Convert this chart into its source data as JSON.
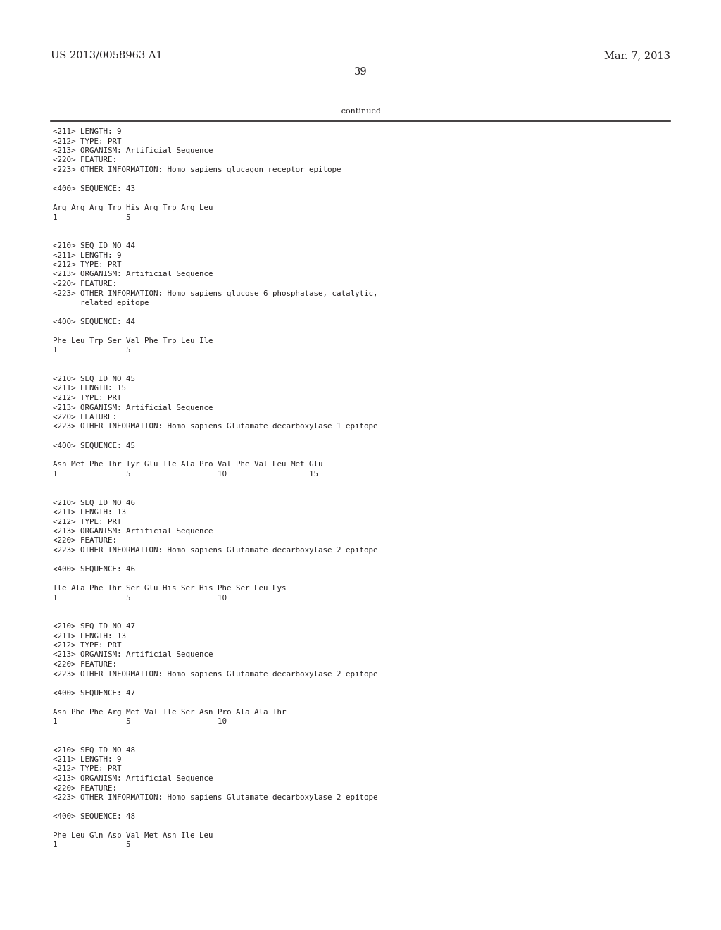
{
  "header_left": "US 2013/0058963 A1",
  "header_right": "Mar. 7, 2013",
  "page_number": "39",
  "continued_label": "-continued",
  "background_color": "#ffffff",
  "text_color": "#231f20",
  "font_size_header": 10.5,
  "font_size_body": 8.0,
  "content_lines": [
    "<211> LENGTH: 9",
    "<212> TYPE: PRT",
    "<213> ORGANISM: Artificial Sequence",
    "<220> FEATURE:",
    "<223> OTHER INFORMATION: Homo sapiens glucagon receptor epitope",
    "",
    "<400> SEQUENCE: 43",
    "",
    "Arg Arg Arg Trp His Arg Trp Arg Leu",
    "1               5",
    "",
    "",
    "<210> SEQ ID NO 44",
    "<211> LENGTH: 9",
    "<212> TYPE: PRT",
    "<213> ORGANISM: Artificial Sequence",
    "<220> FEATURE:",
    "<223> OTHER INFORMATION: Homo sapiens glucose-6-phosphatase, catalytic,",
    "      related epitope",
    "",
    "<400> SEQUENCE: 44",
    "",
    "Phe Leu Trp Ser Val Phe Trp Leu Ile",
    "1               5",
    "",
    "",
    "<210> SEQ ID NO 45",
    "<211> LENGTH: 15",
    "<212> TYPE: PRT",
    "<213> ORGANISM: Artificial Sequence",
    "<220> FEATURE:",
    "<223> OTHER INFORMATION: Homo sapiens Glutamate decarboxylase 1 epitope",
    "",
    "<400> SEQUENCE: 45",
    "",
    "Asn Met Phe Thr Tyr Glu Ile Ala Pro Val Phe Val Leu Met Glu",
    "1               5                   10                  15",
    "",
    "",
    "<210> SEQ ID NO 46",
    "<211> LENGTH: 13",
    "<212> TYPE: PRT",
    "<213> ORGANISM: Artificial Sequence",
    "<220> FEATURE:",
    "<223> OTHER INFORMATION: Homo sapiens Glutamate decarboxylase 2 epitope",
    "",
    "<400> SEQUENCE: 46",
    "",
    "Ile Ala Phe Thr Ser Glu His Ser His Phe Ser Leu Lys",
    "1               5                   10",
    "",
    "",
    "<210> SEQ ID NO 47",
    "<211> LENGTH: 13",
    "<212> TYPE: PRT",
    "<213> ORGANISM: Artificial Sequence",
    "<220> FEATURE:",
    "<223> OTHER INFORMATION: Homo sapiens Glutamate decarboxylase 2 epitope",
    "",
    "<400> SEQUENCE: 47",
    "",
    "Asn Phe Phe Arg Met Val Ile Ser Asn Pro Ala Ala Thr",
    "1               5                   10",
    "",
    "",
    "<210> SEQ ID NO 48",
    "<211> LENGTH: 9",
    "<212> TYPE: PRT",
    "<213> ORGANISM: Artificial Sequence",
    "<220> FEATURE:",
    "<223> OTHER INFORMATION: Homo sapiens Glutamate decarboxylase 2 epitope",
    "",
    "<400> SEQUENCE: 48",
    "",
    "Phe Leu Gln Asp Val Met Asn Ile Leu",
    "1               5"
  ]
}
